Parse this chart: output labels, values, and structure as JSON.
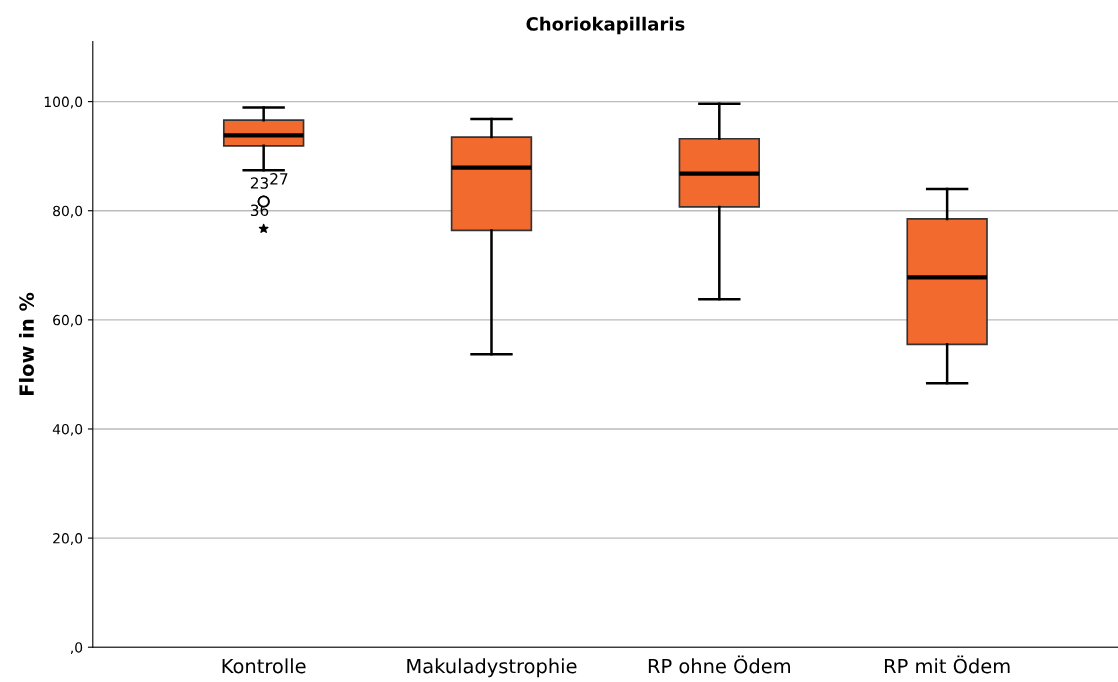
{
  "chart_data": {
    "type": "box",
    "title": "Choriokapillaris",
    "ylabel": "Flow in %",
    "categories": [
      "Kontrolle",
      "Makuladystrophie",
      "RP ohne Ödem",
      "RP mit Ödem"
    ],
    "boxes": [
      {
        "low": 87.4,
        "q1": 91.9,
        "median": 93.8,
        "q3": 96.6,
        "high": 98.9
      },
      {
        "low": 53.7,
        "q1": 76.4,
        "median": 87.9,
        "q3": 93.5,
        "high": 96.8
      },
      {
        "low": 63.8,
        "q1": 80.7,
        "median": 86.8,
        "q3": 93.2,
        "high": 99.6
      },
      {
        "low": 48.4,
        "q1": 55.5,
        "median": 67.8,
        "q3": 78.5,
        "high": 84.0
      }
    ],
    "color": "#f26a2e",
    "series": [
      {
        "type": "scatter",
        "x": [
          "Kontrolle",
          "Kontrolle"
        ],
        "values": [
          81.7,
          81.7
        ],
        "marker": "circle",
        "color": "#000000"
      },
      {
        "type": "scatter",
        "x": [
          "Kontrolle"
        ],
        "values": [
          76.7
        ],
        "marker": "star",
        "color": "#000000"
      }
    ],
    "annotations": [
      {
        "text": "23",
        "x": "Kontrolle",
        "y": 81.7
      },
      {
        "text": "27",
        "x": "Kontrolle",
        "y": 81.7
      },
      {
        "text": "36",
        "x": "Kontrolle",
        "y": 76.7
      }
    ],
    "ylim": [
      0,
      111
    ],
    "yticks": [
      {
        "value": 0,
        "label": ",0"
      },
      {
        "value": 20,
        "label": "20,0"
      },
      {
        "value": 40,
        "label": "40,0"
      },
      {
        "value": 60,
        "label": "60,0"
      },
      {
        "value": 80,
        "label": "80,0"
      },
      {
        "value": 100,
        "label": "100,0"
      }
    ],
    "grid": "y",
    "legend": false
  }
}
